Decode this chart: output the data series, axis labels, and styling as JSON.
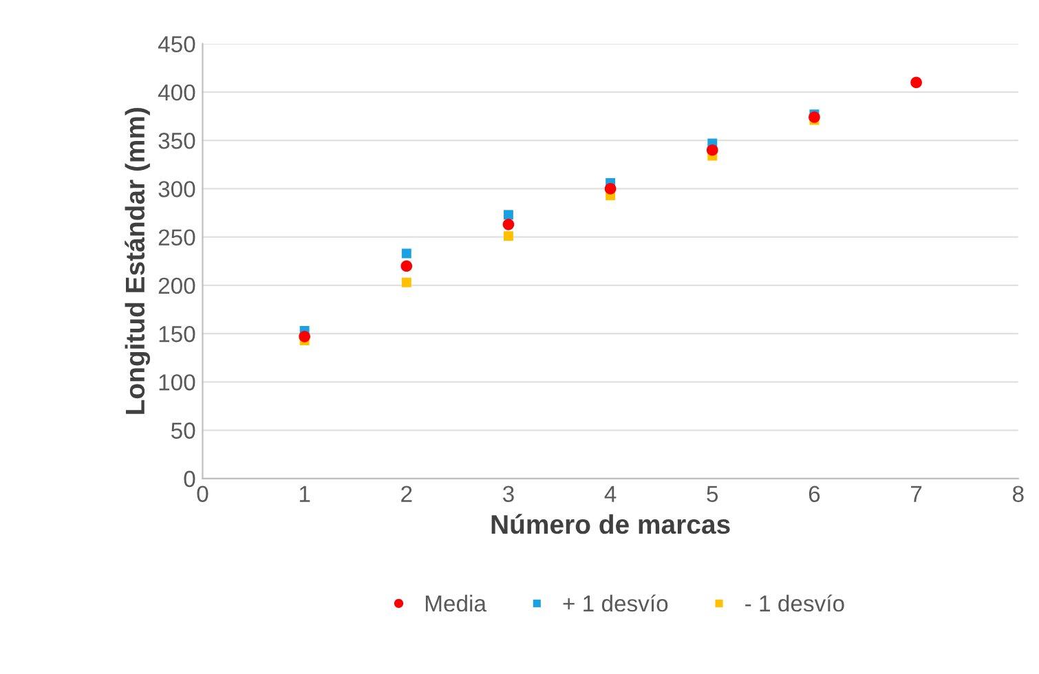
{
  "chart_data": {
    "type": "scatter",
    "xlabel": "Número de marcas",
    "ylabel": "Longitud Estándar (mm)",
    "x": [
      1,
      2,
      3,
      4,
      5,
      6,
      7
    ],
    "series": [
      {
        "name": "Media",
        "color": "#ff0000",
        "marker": "circle",
        "values": [
          147,
          220,
          263,
          300,
          340,
          374,
          410
        ]
      },
      {
        "name": "+ 1 desvío",
        "color": "#1ba1e2",
        "marker": "square",
        "values": [
          153,
          233,
          273,
          306,
          347,
          377,
          null
        ]
      },
      {
        "name": "- 1 desvío",
        "color": "#ffc000",
        "marker": "square",
        "values": [
          143,
          203,
          251,
          293,
          334,
          371,
          null
        ]
      }
    ],
    "xlim": [
      0,
      8
    ],
    "xticks": [
      0,
      1,
      2,
      3,
      4,
      5,
      6,
      7,
      8
    ],
    "ylim": [
      0,
      450
    ],
    "yticks": [
      0,
      50,
      100,
      150,
      200,
      250,
      300,
      350,
      400,
      450
    ],
    "grid": "y",
    "legend": "bottom"
  }
}
